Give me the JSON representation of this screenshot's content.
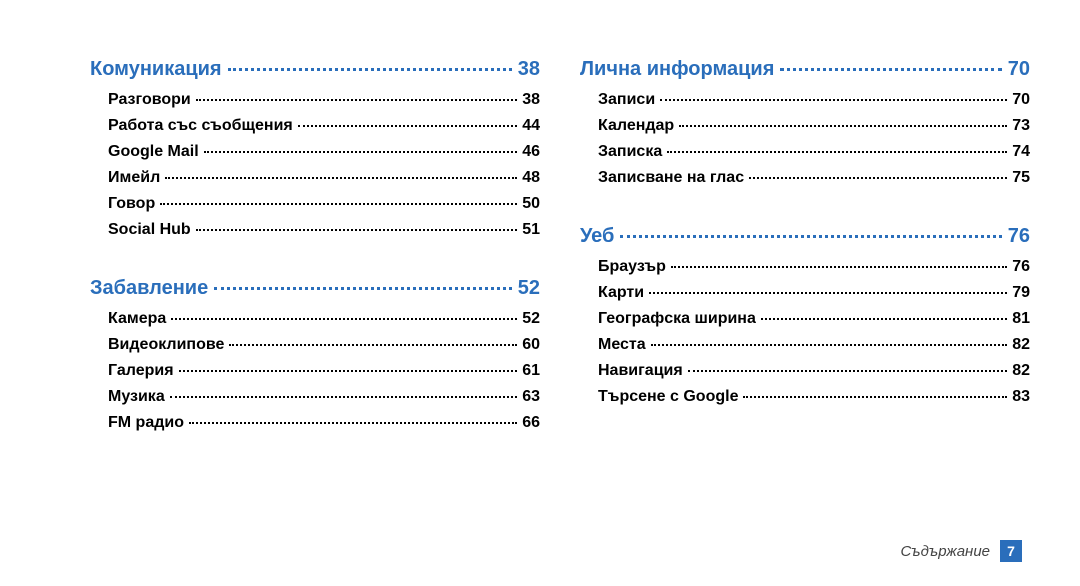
{
  "colors": {
    "heading": "#2a6ebb",
    "body": "#000000",
    "page_box_bg": "#2a6ebb",
    "page_box_fg": "#ffffff",
    "footer_text": "#444444",
    "background": "#ffffff"
  },
  "typography": {
    "heading_fontsize": 20,
    "entry_fontsize": 16,
    "footer_fontsize": 15,
    "font_family": "Arial"
  },
  "columns": [
    {
      "sections": [
        {
          "title": "Комуникация",
          "page": "38",
          "entries": [
            {
              "label": "Разговори",
              "page": "38"
            },
            {
              "label": "Работа със съобщения",
              "page": "44"
            },
            {
              "label": "Google Mail",
              "page": "46"
            },
            {
              "label": "Имейл",
              "page": "48"
            },
            {
              "label": "Говор",
              "page": "50"
            },
            {
              "label": "Social Hub",
              "page": "51"
            }
          ]
        },
        {
          "title": "Забавление",
          "page": "52",
          "entries": [
            {
              "label": "Камера",
              "page": "52"
            },
            {
              "label": "Видеоклипове",
              "page": "60"
            },
            {
              "label": "Галерия",
              "page": "61"
            },
            {
              "label": "Музика",
              "page": "63"
            },
            {
              "label": "FM радио",
              "page": "66"
            }
          ]
        }
      ]
    },
    {
      "sections": [
        {
          "title": "Лична информация",
          "page": "70",
          "entries": [
            {
              "label": "Записи",
              "page": "70"
            },
            {
              "label": "Календар",
              "page": "73"
            },
            {
              "label": "Записка",
              "page": "74"
            },
            {
              "label": "Записване на глас",
              "page": "75"
            }
          ]
        },
        {
          "title": "Уеб",
          "page": "76",
          "entries": [
            {
              "label": "Браузър",
              "page": "76"
            },
            {
              "label": "Карти",
              "page": "79"
            },
            {
              "label": "Географска ширина",
              "page": "81"
            },
            {
              "label": "Места",
              "page": "82"
            },
            {
              "label": "Навигация",
              "page": "82"
            },
            {
              "label": "Търсене с Google",
              "page": "83"
            }
          ]
        }
      ]
    }
  ],
  "footer": {
    "label": "Съдържание",
    "page": "7"
  }
}
